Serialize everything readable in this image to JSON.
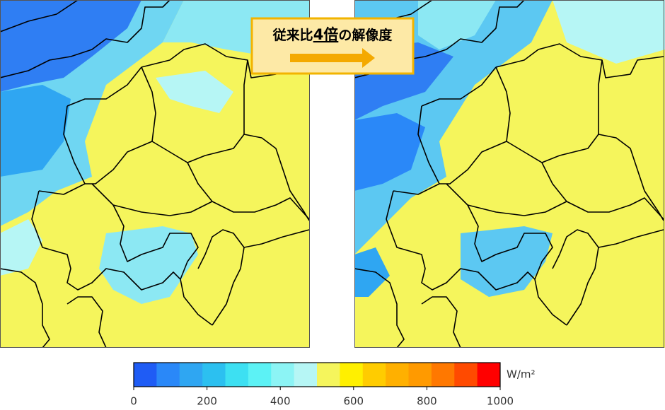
{
  "callout": {
    "prefix": "従来比",
    "emphasis": "4倍",
    "suffix": "の解像度"
  },
  "colorbar": {
    "lim": [
      0,
      1000
    ],
    "ticks": [
      0,
      200,
      400,
      600,
      800,
      1000
    ],
    "unit": "W/m²",
    "colors": [
      "#1f5cf5",
      "#2a88f8",
      "#2fa6f2",
      "#2cc0f0",
      "#3de0f2",
      "#5cf2f5",
      "#8cf4f5",
      "#b6f6f5",
      "#f5f55c",
      "#fff000",
      "#ffcc00",
      "#ffb000",
      "#ff9a00",
      "#ff7800",
      "#ff4a00",
      "#ff0000"
    ]
  }
}
